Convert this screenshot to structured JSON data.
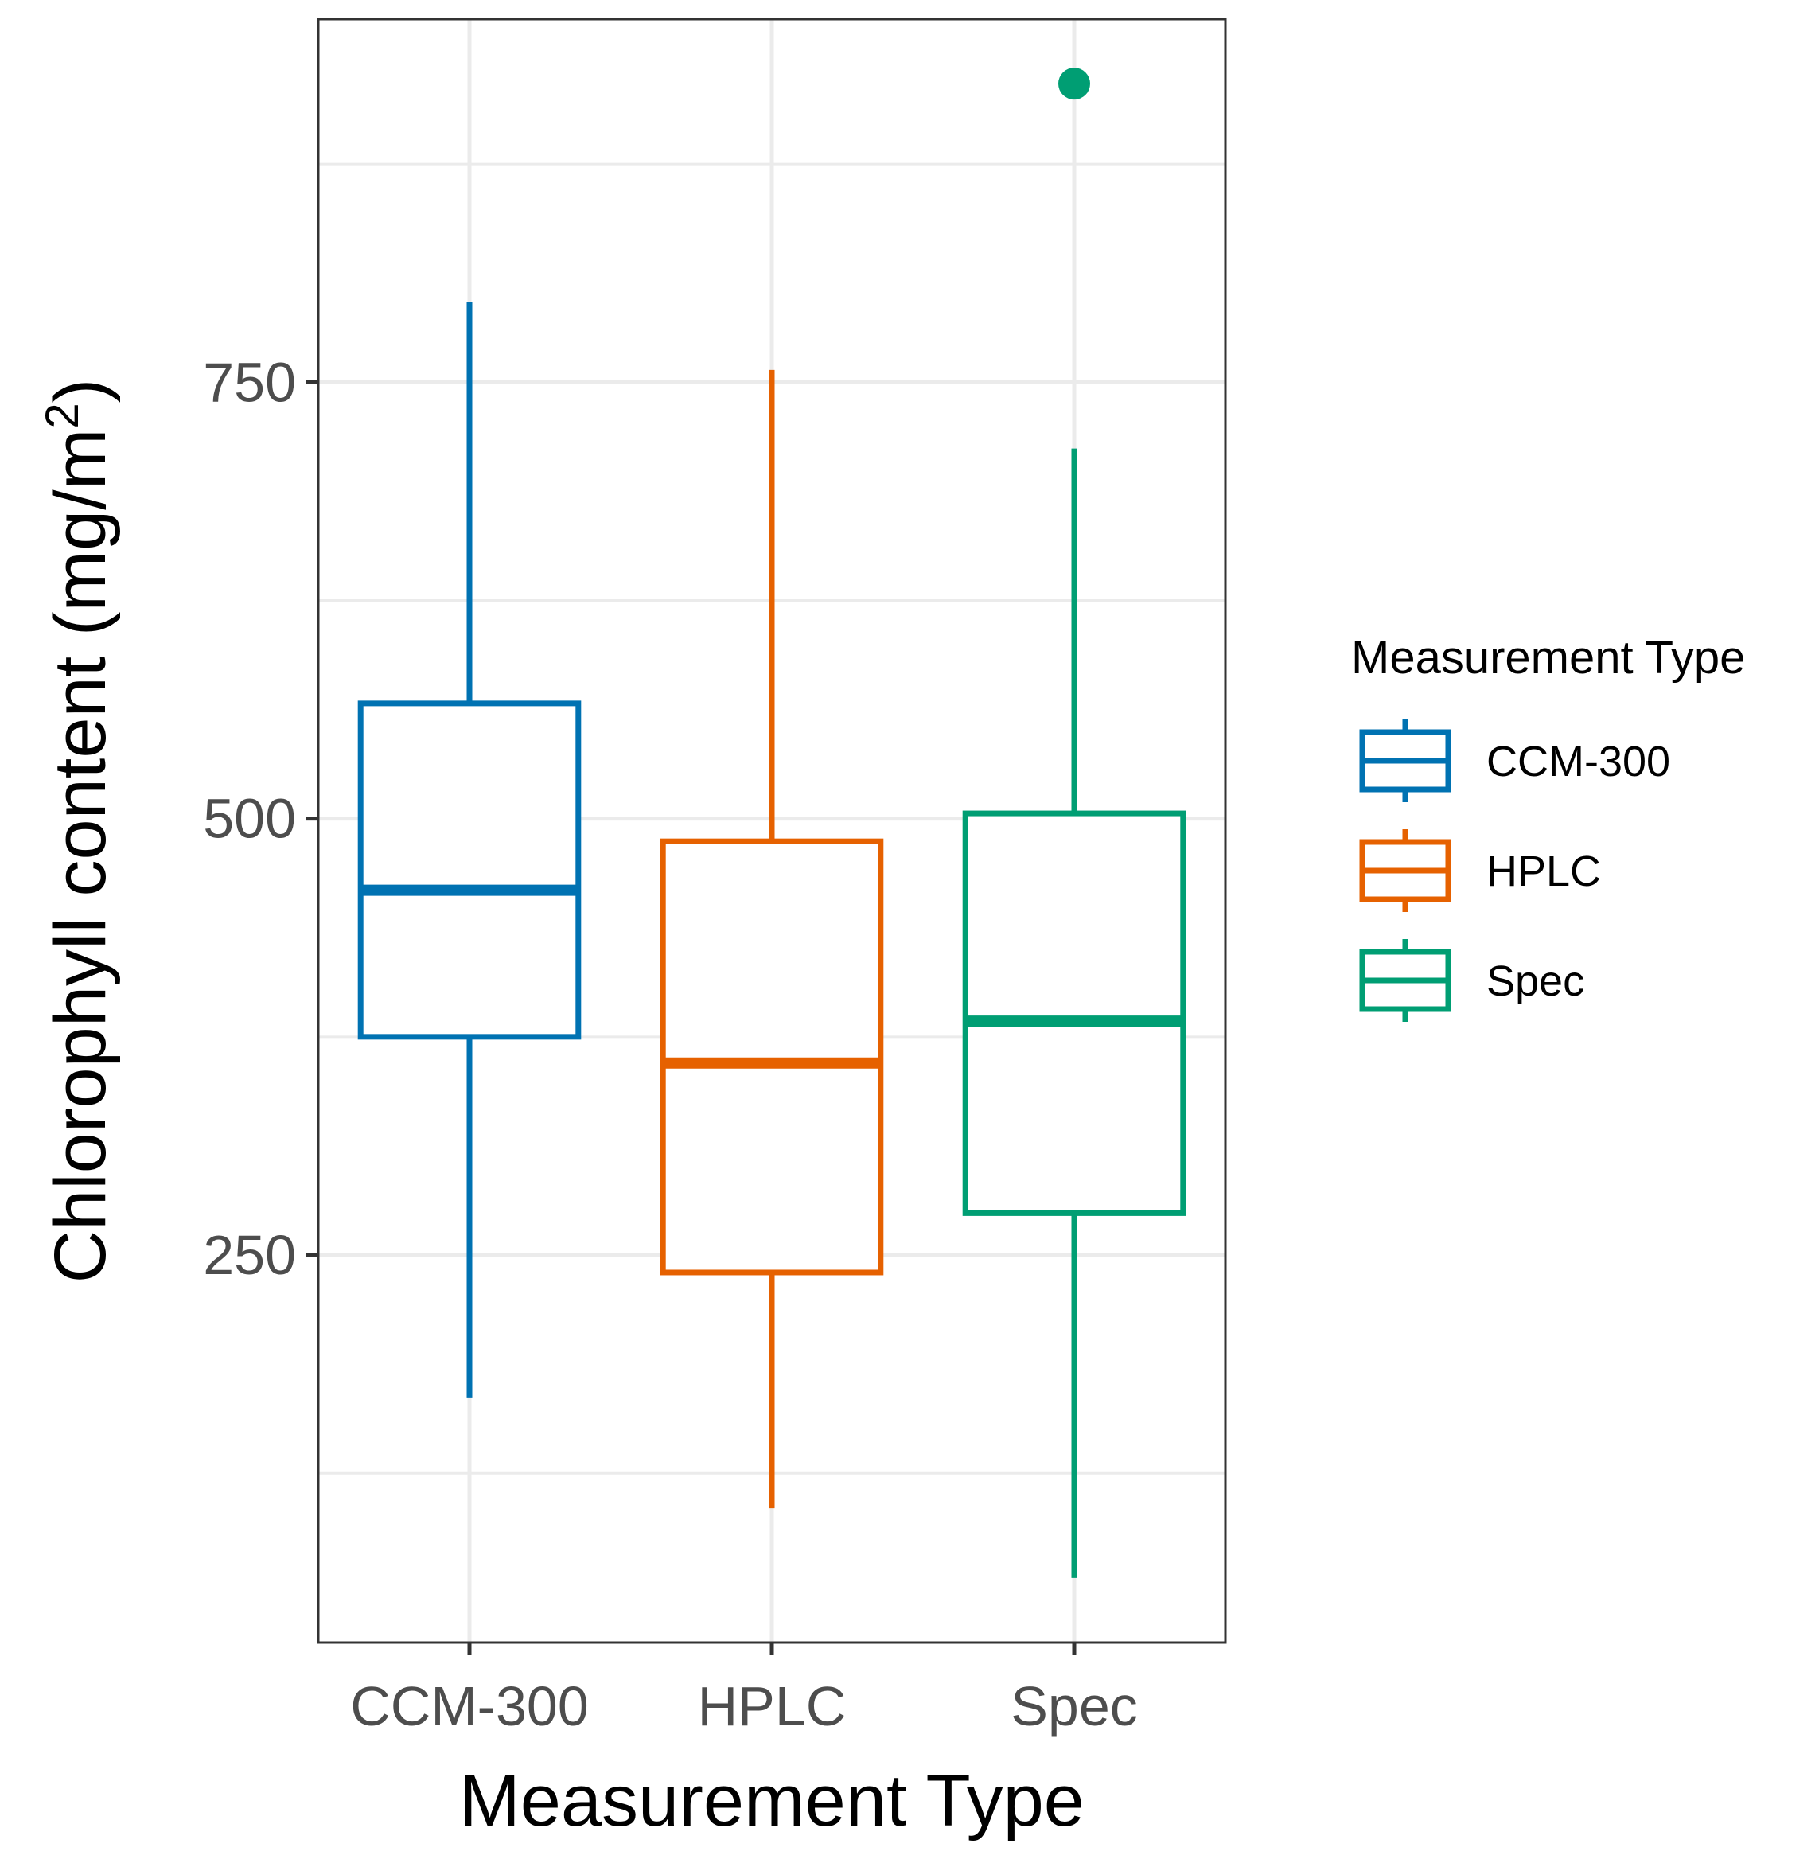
{
  "chart_data": {
    "type": "box",
    "title": "",
    "xlabel": "Measurement Type",
    "ylabel": "Chlorophyll content (mg/m",
    "ylabel_superscript": "2",
    "ylabel_close": ")",
    "ylim": [
      28,
      958
    ],
    "yticks": [
      250,
      500,
      750
    ],
    "grid": true,
    "legend": {
      "title": "Measurement Type",
      "position": "right"
    },
    "categories": [
      "CCM-300",
      "HPLC",
      "Spec"
    ],
    "series": [
      {
        "name": "CCM-300",
        "color": "#0072B2",
        "min": 168,
        "q1": 375,
        "median": 459,
        "q3": 566,
        "max": 796,
        "outliers": []
      },
      {
        "name": "HPLC",
        "color": "#E66100",
        "min": 105,
        "q1": 240,
        "median": 360,
        "q3": 487,
        "max": 757,
        "outliers": []
      },
      {
        "name": "Spec",
        "color": "#009E73",
        "min": 65,
        "q1": 274,
        "median": 384,
        "q3": 503,
        "max": 712,
        "outliers": [
          921
        ]
      }
    ]
  }
}
